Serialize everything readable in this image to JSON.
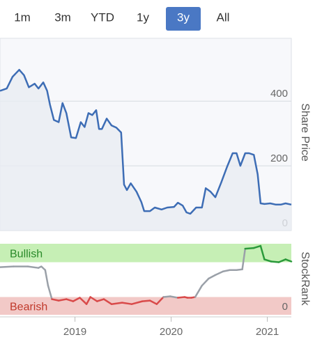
{
  "tabs": [
    "1m",
    "3m",
    "YTD",
    "1y",
    "3y",
    "All"
  ],
  "active_tab": 4,
  "chart_data": [
    {
      "type": "line",
      "y_label": "Share Price",
      "x": [
        2018.22,
        2018.29,
        2018.35,
        2018.42,
        2018.47,
        2018.52,
        2018.58,
        2018.62,
        2018.67,
        2018.71,
        2018.74,
        2018.78,
        2018.83,
        2018.87,
        2018.91,
        2018.96,
        2019.01,
        2019.06,
        2019.1,
        2019.14,
        2019.18,
        2019.22,
        2019.25,
        2019.28,
        2019.33,
        2019.38,
        2019.43,
        2019.48,
        2019.51,
        2019.54,
        2019.58,
        2019.64,
        2019.69,
        2019.72,
        2019.78,
        2019.83,
        2019.9,
        2019.96,
        2020.03,
        2020.07,
        2020.12,
        2020.16,
        2020.2,
        2020.26,
        2020.32,
        2020.36,
        2020.41,
        2020.46,
        2020.52,
        2020.58,
        2020.64,
        2020.68,
        2020.72,
        2020.77,
        2020.81,
        2020.86,
        2020.9,
        2020.93,
        2020.97,
        2021.03,
        2021.09,
        2021.14,
        2021.19,
        2021.25
      ],
      "series": [
        {
          "color": "#3d6db5",
          "values": [
            432,
            439,
            475,
            497,
            480,
            443,
            454,
            439,
            458,
            432,
            389,
            342,
            335,
            394,
            363,
            288,
            286,
            335,
            320,
            363,
            357,
            372,
            314,
            314,
            346,
            325,
            318,
            303,
            142,
            125,
            146,
            120,
            88,
            60,
            60,
            71,
            65,
            71,
            73,
            86,
            77,
            56,
            52,
            71,
            71,
            131,
            120,
            103,
            148,
            196,
            239,
            239,
            200,
            239,
            239,
            234,
            174,
            84,
            82,
            84,
            80,
            80,
            84,
            80
          ]
        }
      ],
      "xlim": [
        2018.22,
        2021.25
      ],
      "ylim": [
        0,
        590
      ],
      "yticks": [
        0,
        200,
        400
      ],
      "grid": true
    },
    {
      "type": "rank",
      "y_label": "StockRank",
      "x": [
        2018.22,
        2018.36,
        2018.51,
        2018.62,
        2018.65,
        2018.69,
        2018.72,
        2018.76,
        2018.83,
        2018.91,
        2018.98,
        2019.05,
        2019.12,
        2019.16,
        2019.23,
        2019.3,
        2019.38,
        2019.49,
        2019.59,
        2019.7,
        2019.78,
        2019.85,
        2019.92,
        2019.99,
        2020.07,
        2020.14,
        2020.17,
        2020.21,
        2020.25,
        2020.32,
        2020.39,
        2020.46,
        2020.54,
        2020.61,
        2020.68,
        2020.74,
        2020.77,
        2020.86,
        2020.93,
        2020.97,
        2021.04,
        2021.12,
        2021.19,
        2021.25
      ],
      "values": [
        67,
        68,
        68,
        66,
        68,
        63,
        41,
        22,
        20,
        22,
        19,
        24,
        15,
        25,
        19,
        22,
        15,
        17,
        15,
        19,
        20,
        15,
        25,
        26,
        24,
        25,
        24,
        24,
        25,
        41,
        51,
        56,
        61,
        63,
        63,
        64,
        93,
        94,
        97,
        78,
        75,
        74,
        78,
        75
      ],
      "bands": [
        {
          "label": "Bullish",
          "from": 74,
          "to": 100,
          "color": "#c6efb5",
          "text_color": "#2a8a2a",
          "line_color": "#2a9a3a"
        },
        {
          "label": "Bearish",
          "from": 0,
          "to": 25,
          "color": "#f2c9c7",
          "text_color": "#c0392b",
          "line_color": "#d94a4a"
        }
      ],
      "neutral_color": "#9aa0a8",
      "xlim": [
        2018.22,
        2021.25
      ],
      "ylim": [
        0,
        100
      ],
      "yticks": [
        0
      ],
      "xticks": [
        2019,
        2020,
        2021
      ]
    }
  ]
}
